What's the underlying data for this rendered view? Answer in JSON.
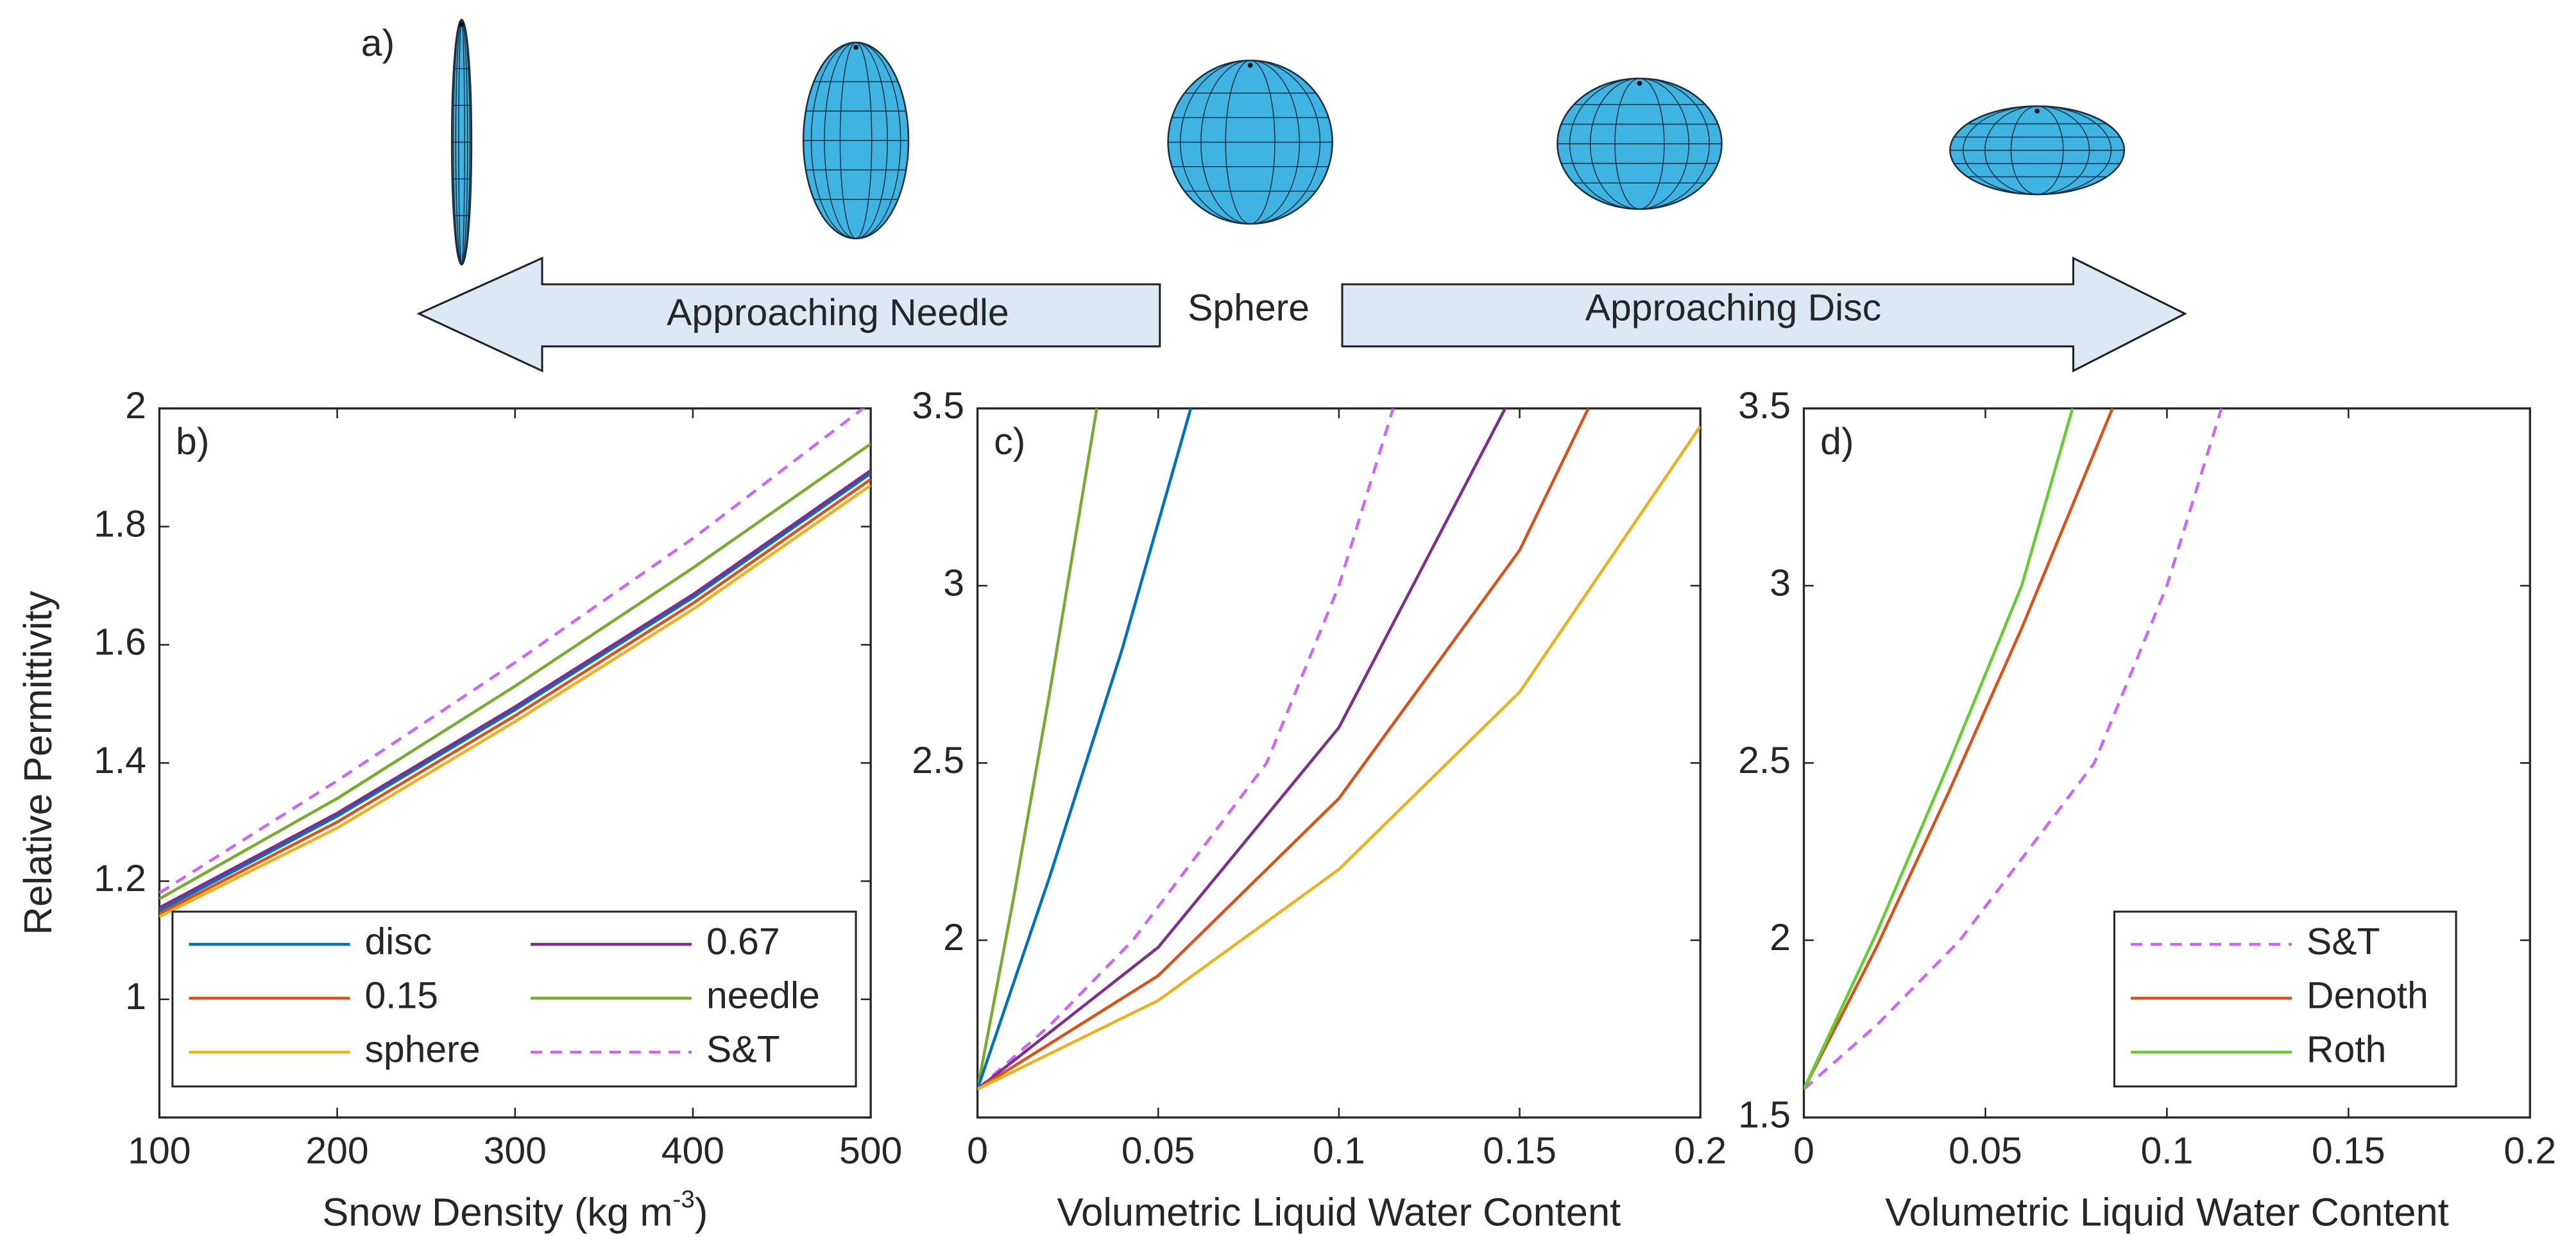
{
  "figure": {
    "panel_label": "a)",
    "labels": [
      "Approaching Needle",
      "Sphere",
      "Approaching Disc"
    ]
  },
  "chart_data": [
    {
      "type": "line",
      "panel_label": "b)",
      "ylabel": "Relative Permittivity",
      "xlabel": [
        "Snow Density (kg m",
        "-3",
        ")"
      ],
      "x": [
        100,
        200,
        300,
        400,
        500
      ],
      "xlim": [
        100,
        500
      ],
      "xticks": [
        100,
        200,
        300,
        400,
        500
      ],
      "ylim": [
        0.8,
        2
      ],
      "yticks": [
        1,
        1.2,
        1.4,
        1.6,
        1.8,
        2
      ],
      "legend": "lower left",
      "legend_columns": 2,
      "series": [
        {
          "name": "disc",
          "color": "#0072bd",
          "values": [
            1.15,
            1.31,
            1.49,
            1.68,
            1.89
          ]
        },
        {
          "name": "0.15",
          "color": "#d95319",
          "values": [
            1.145,
            1.3,
            1.48,
            1.67,
            1.88
          ]
        },
        {
          "name": "sphere",
          "color": "#edb120",
          "values": [
            1.14,
            1.29,
            1.47,
            1.66,
            1.87
          ]
        },
        {
          "name": "0.67",
          "color": "#7e2f8e",
          "values": [
            1.155,
            1.315,
            1.495,
            1.685,
            1.895
          ]
        },
        {
          "name": "needle",
          "color": "#77ac30",
          "values": [
            1.17,
            1.34,
            1.53,
            1.73,
            1.94
          ]
        },
        {
          "name": "S&T",
          "color": "#cc66ff",
          "dashed": true,
          "values": [
            1.18,
            1.37,
            1.57,
            1.78,
            2.01
          ]
        }
      ]
    },
    {
      "type": "line",
      "panel_label": "c)",
      "xlabel": [
        "Volumetric Liquid Water Content"
      ],
      "xlim": [
        0,
        0.2
      ],
      "xticks": [
        0,
        0.05,
        0.1,
        0.15,
        0.2
      ],
      "ylim": [
        1.5,
        3.5
      ],
      "yticks": [
        2,
        2.5,
        3,
        3.5
      ],
      "series": [
        {
          "name": "needle",
          "color": "#77ac30",
          "x": [
            0,
            0.01,
            0.02,
            0.033
          ],
          "values": [
            1.58,
            2.12,
            2.7,
            3.5
          ]
        },
        {
          "name": "disc",
          "color": "#0072bd",
          "x": [
            0,
            0.02,
            0.04,
            0.059
          ],
          "values": [
            1.58,
            2.18,
            2.82,
            3.5
          ]
        },
        {
          "name": "S&T",
          "color": "#cc66ff",
          "dashed": true,
          "x": [
            0,
            0.02,
            0.043,
            0.08,
            0.1,
            0.115
          ],
          "values": [
            1.58,
            1.76,
            2.0,
            2.5,
            3.0,
            3.5
          ]
        },
        {
          "name": "0.67",
          "color": "#7e2f8e",
          "x": [
            0,
            0.05,
            0.1,
            0.146
          ],
          "values": [
            1.58,
            1.98,
            2.6,
            3.5
          ]
        },
        {
          "name": "0.15",
          "color": "#d95319",
          "x": [
            0,
            0.05,
            0.1,
            0.15,
            0.169
          ],
          "values": [
            1.58,
            1.9,
            2.4,
            3.1,
            3.5
          ]
        },
        {
          "name": "sphere",
          "color": "#edb120",
          "x": [
            0,
            0.05,
            0.1,
            0.15,
            0.2
          ],
          "values": [
            1.58,
            1.83,
            2.2,
            2.7,
            3.45
          ]
        }
      ]
    },
    {
      "type": "line",
      "panel_label": "d)",
      "xlabel": [
        "Volumetric Liquid Water Content"
      ],
      "xlim": [
        0,
        0.2
      ],
      "xticks": [
        0,
        0.05,
        0.1,
        0.15,
        0.2
      ],
      "ylim": [
        1.5,
        3.5
      ],
      "yticks": [
        1.5,
        2,
        2.5,
        3,
        3.5
      ],
      "legend": "lower right",
      "legend_columns": 1,
      "series": [
        {
          "name": "S&T",
          "color": "#cc66ff",
          "dashed": true,
          "x": [
            0,
            0.02,
            0.043,
            0.08,
            0.1,
            0.115
          ],
          "values": [
            1.58,
            1.76,
            2.0,
            2.5,
            3.0,
            3.5
          ]
        },
        {
          "name": "Denoth",
          "color": "#d95319",
          "x": [
            0,
            0.02,
            0.04,
            0.06,
            0.085
          ],
          "values": [
            1.58,
            1.98,
            2.42,
            2.88,
            3.5
          ]
        },
        {
          "name": "Roth",
          "color": "#66cc33",
          "x": [
            0,
            0.02,
            0.04,
            0.06,
            0.074
          ],
          "values": [
            1.58,
            2.02,
            2.5,
            3.0,
            3.5
          ]
        }
      ]
    }
  ]
}
